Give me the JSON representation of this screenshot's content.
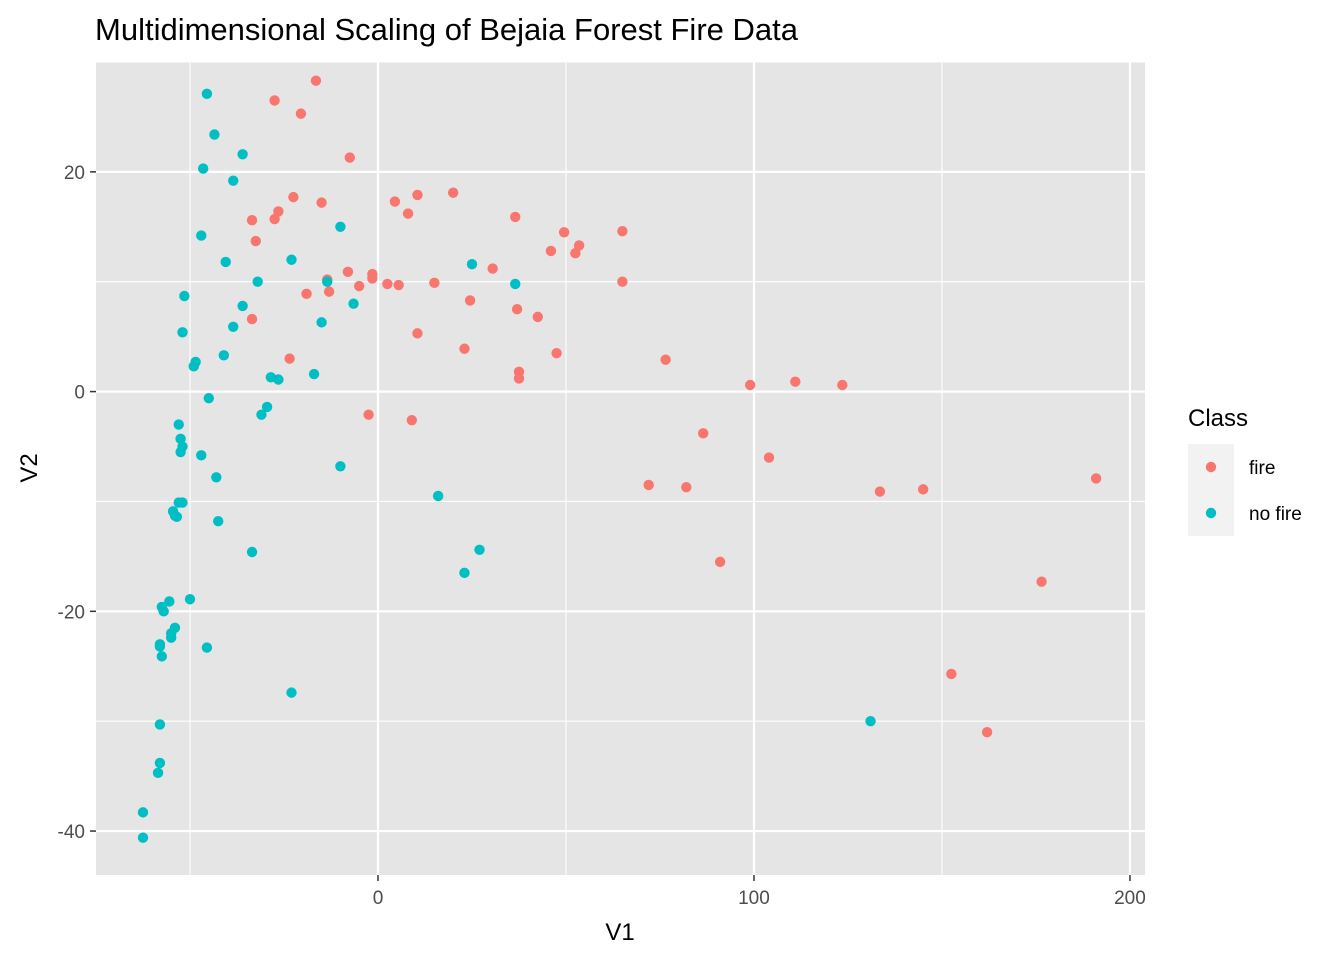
{
  "chart_data": {
    "type": "scatter",
    "title": "Multidimensional Scaling of Bejaia Forest Fire Data",
    "xlabel": "V1",
    "ylabel": "V2",
    "xlim": [
      -75,
      204
    ],
    "ylim": [
      -44,
      30
    ],
    "x_ticks": [
      0,
      100,
      200
    ],
    "x_tick_labels": [
      "0",
      "100",
      "200"
    ],
    "y_ticks": [
      -40,
      -20,
      0,
      20
    ],
    "y_tick_labels": [
      "-40",
      "-20",
      "0",
      "20"
    ],
    "grid": true,
    "background": "#e5e5e5",
    "legend": {
      "title": "Class",
      "position": "right"
    },
    "series": [
      {
        "name": "fire",
        "color": "#f8766d",
        "points": [
          [
            -27.5,
            26.5
          ],
          [
            -20.5,
            25.3
          ],
          [
            -16.5,
            28.3
          ],
          [
            -7.5,
            21.3
          ],
          [
            -22.5,
            17.7
          ],
          [
            -15,
            17.2
          ],
          [
            -33.5,
            15.6
          ],
          [
            -26.5,
            16.4
          ],
          [
            -27.5,
            15.7
          ],
          [
            -32.5,
            13.7
          ],
          [
            -13.5,
            10.2
          ],
          [
            -8,
            10.9
          ],
          [
            -13,
            9.1
          ],
          [
            -19,
            8.9
          ],
          [
            -5,
            9.6
          ],
          [
            -1.5,
            10.7
          ],
          [
            -1.5,
            10.3
          ],
          [
            2.5,
            9.8
          ],
          [
            5.5,
            9.7
          ],
          [
            4.5,
            17.3
          ],
          [
            8,
            16.2
          ],
          [
            10.5,
            17.9
          ],
          [
            20,
            18.1
          ],
          [
            15,
            9.9
          ],
          [
            36.5,
            15.9
          ],
          [
            30.5,
            11.2
          ],
          [
            46,
            12.8
          ],
          [
            49.5,
            14.5
          ],
          [
            53.5,
            13.3
          ],
          [
            52.5,
            12.6
          ],
          [
            65,
            14.6
          ],
          [
            65,
            10
          ],
          [
            24.5,
            8.3
          ],
          [
            37,
            7.5
          ],
          [
            42.5,
            6.8
          ],
          [
            -33.5,
            6.6
          ],
          [
            -23.5,
            3
          ],
          [
            10.5,
            5.3
          ],
          [
            23,
            3.9
          ],
          [
            47.5,
            3.5
          ],
          [
            76.5,
            2.9
          ],
          [
            37.5,
            1.8
          ],
          [
            37.5,
            1.2
          ],
          [
            99,
            0.6
          ],
          [
            111,
            0.9
          ],
          [
            123.5,
            0.6
          ],
          [
            -2.5,
            -2.1
          ],
          [
            9,
            -2.6
          ],
          [
            86.5,
            -3.8
          ],
          [
            104,
            -6
          ],
          [
            72,
            -8.5
          ],
          [
            82,
            -8.7
          ],
          [
            133.5,
            -9.1
          ],
          [
            145,
            -8.9
          ],
          [
            191,
            -7.9
          ],
          [
            91,
            -15.5
          ],
          [
            176.5,
            -17.3
          ],
          [
            152.5,
            -25.7
          ],
          [
            162,
            -31
          ]
        ]
      },
      {
        "name": "no fire",
        "color": "#00bfc4",
        "points": [
          [
            -45.5,
            27.1
          ],
          [
            -43.5,
            23.4
          ],
          [
            -36,
            21.6
          ],
          [
            -46.5,
            20.3
          ],
          [
            -38.5,
            19.2
          ],
          [
            -10,
            15
          ],
          [
            -47,
            14.2
          ],
          [
            -23,
            12
          ],
          [
            -40.5,
            11.8
          ],
          [
            25,
            11.6
          ],
          [
            -32,
            10
          ],
          [
            -13.5,
            10
          ],
          [
            36.5,
            9.8
          ],
          [
            -51.5,
            8.7
          ],
          [
            -6.5,
            8
          ],
          [
            -36,
            7.8
          ],
          [
            -15,
            6.3
          ],
          [
            -38.5,
            5.9
          ],
          [
            -52,
            5.4
          ],
          [
            -41,
            3.3
          ],
          [
            -48.5,
            2.7
          ],
          [
            -49,
            2.3
          ],
          [
            -28.5,
            1.3
          ],
          [
            -26.5,
            1.1
          ],
          [
            -17,
            1.6
          ],
          [
            -45,
            -0.6
          ],
          [
            -29.5,
            -1.4
          ],
          [
            -31,
            -2.1
          ],
          [
            -53,
            -3
          ],
          [
            -52.5,
            -4.3
          ],
          [
            -52,
            -5
          ],
          [
            -52.5,
            -5.5
          ],
          [
            -47,
            -5.8
          ],
          [
            -10,
            -6.8
          ],
          [
            -43,
            -7.8
          ],
          [
            16,
            -9.5
          ],
          [
            -52,
            -10.1
          ],
          [
            -53,
            -10.1
          ],
          [
            -54.5,
            -10.9
          ],
          [
            -54,
            -11.3
          ],
          [
            -53.5,
            -11.4
          ],
          [
            -42.5,
            -11.8
          ],
          [
            -33.5,
            -14.6
          ],
          [
            27,
            -14.4
          ],
          [
            23,
            -16.5
          ],
          [
            -50,
            -18.9
          ],
          [
            -55.5,
            -19.1
          ],
          [
            -57.5,
            -19.6
          ],
          [
            -57,
            -20
          ],
          [
            -54,
            -21.5
          ],
          [
            -55,
            -22
          ],
          [
            -55,
            -22.4
          ],
          [
            -58,
            -23
          ],
          [
            -58,
            -23.2
          ],
          [
            -57.5,
            -24.1
          ],
          [
            -45.5,
            -23.3
          ],
          [
            -23,
            -27.4
          ],
          [
            -58,
            -30.3
          ],
          [
            131,
            -30
          ],
          [
            -58,
            -33.8
          ],
          [
            -58.5,
            -34.7
          ],
          [
            -62.5,
            -38.3
          ],
          [
            -62.5,
            -40.6
          ]
        ]
      }
    ]
  }
}
